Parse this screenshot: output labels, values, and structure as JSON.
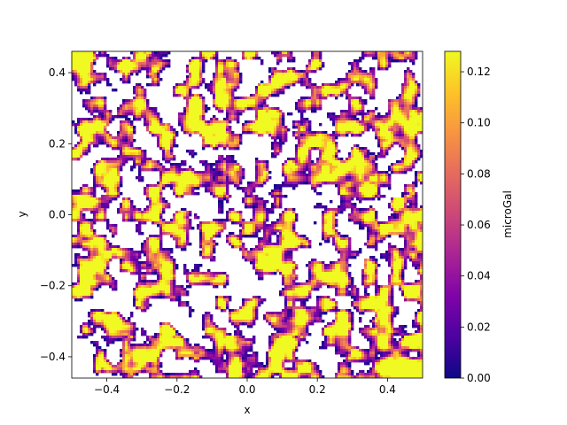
{
  "chart_data": {
    "type": "heatmap",
    "title": "",
    "xlabel": "x",
    "ylabel": "y",
    "xlim": [
      -0.5,
      0.5
    ],
    "ylim": [
      -0.46,
      0.46
    ],
    "x_ticks": [
      -0.4,
      -0.2,
      0.0,
      0.2,
      0.4
    ],
    "x_tick_labels": [
      "−0.4",
      "−0.2",
      "0.0",
      "0.2",
      "0.4"
    ],
    "y_ticks": [
      -0.4,
      -0.2,
      0.0,
      0.2,
      0.4
    ],
    "y_tick_labels": [
      "−0.4",
      "−0.2",
      "0.0",
      "0.2",
      "0.4"
    ],
    "grid": false,
    "colormap": "plasma",
    "colorbar": {
      "label": "microGal",
      "range": [
        0.0,
        0.128
      ],
      "ticks": [
        0.0,
        0.02,
        0.04,
        0.06,
        0.08,
        0.1,
        0.12
      ],
      "tick_labels": [
        "0.00",
        "0.02",
        "0.04",
        "0.06",
        "0.08",
        "0.10",
        "0.12"
      ]
    },
    "contour_band_fraction": 0.55,
    "higher_density_region": "bottom-right"
  }
}
